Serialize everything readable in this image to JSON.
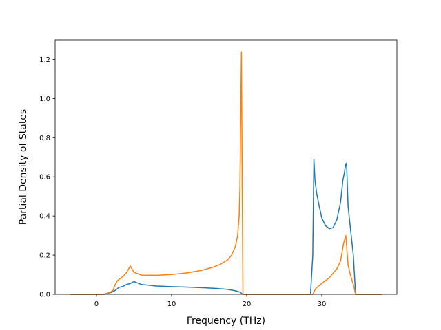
{
  "chart_data": {
    "type": "line",
    "title": "",
    "xlabel": "Frequency (THz)",
    "ylabel": "Partial Density of States",
    "xlim": [
      -5.5,
      40
    ],
    "ylim": [
      0,
      1.3
    ],
    "xticks": [
      0,
      10,
      20,
      30
    ],
    "yticks": [
      0.0,
      0.2,
      0.4,
      0.6,
      0.8,
      1.0,
      1.2
    ],
    "grid": false,
    "legend": "none",
    "series": [
      {
        "color": "#1f77b4",
        "x": [
          -3.5,
          1.0,
          2.0,
          2.5,
          3.0,
          3.5,
          4.0,
          4.5,
          5.0,
          6.0,
          8.0,
          10.0,
          12.0,
          14.0,
          16.0,
          17.5,
          18.5,
          19.2,
          19.3,
          19.5,
          28.5,
          28.8,
          28.95,
          29.1,
          29.3,
          29.6,
          30.0,
          30.5,
          31.0,
          31.5,
          32.0,
          32.5,
          32.8,
          33.0,
          33.2,
          33.3,
          33.5,
          33.8,
          34.2,
          34.5,
          35.0,
          38.0
        ],
        "values": [
          0.0,
          0.0,
          0.01,
          0.02,
          0.035,
          0.04,
          0.05,
          0.055,
          0.065,
          0.05,
          0.042,
          0.039,
          0.037,
          0.034,
          0.03,
          0.025,
          0.018,
          0.01,
          0.005,
          0.0,
          0.0,
          0.2,
          0.69,
          0.58,
          0.52,
          0.46,
          0.39,
          0.35,
          0.335,
          0.34,
          0.38,
          0.47,
          0.58,
          0.62,
          0.665,
          0.67,
          0.45,
          0.34,
          0.2,
          0.0,
          0.0,
          0.0
        ]
      },
      {
        "color": "#ff7f0e",
        "x": [
          -3.5,
          1.0,
          1.8,
          2.2,
          2.5,
          2.8,
          3.5,
          4.0,
          4.5,
          5.0,
          6.0,
          8.0,
          10.0,
          12.0,
          14.0,
          15.5,
          16.5,
          17.5,
          18.0,
          18.5,
          18.8,
          19.0,
          19.1,
          19.2,
          19.3,
          19.4,
          19.5,
          28.8,
          29.2,
          30.0,
          31.0,
          32.0,
          32.5,
          32.9,
          33.2,
          33.5,
          33.8,
          34.2,
          34.5,
          35.0,
          38.0
        ],
        "values": [
          0.0,
          0.0,
          0.01,
          0.02,
          0.05,
          0.07,
          0.09,
          0.11,
          0.145,
          0.112,
          0.098,
          0.097,
          0.101,
          0.109,
          0.122,
          0.138,
          0.153,
          0.177,
          0.2,
          0.245,
          0.3,
          0.4,
          0.55,
          0.9,
          1.24,
          0.6,
          0.0,
          0.0,
          0.03,
          0.055,
          0.085,
          0.13,
          0.17,
          0.26,
          0.3,
          0.15,
          0.1,
          0.05,
          0.0,
          0.0,
          0.0
        ]
      }
    ]
  }
}
